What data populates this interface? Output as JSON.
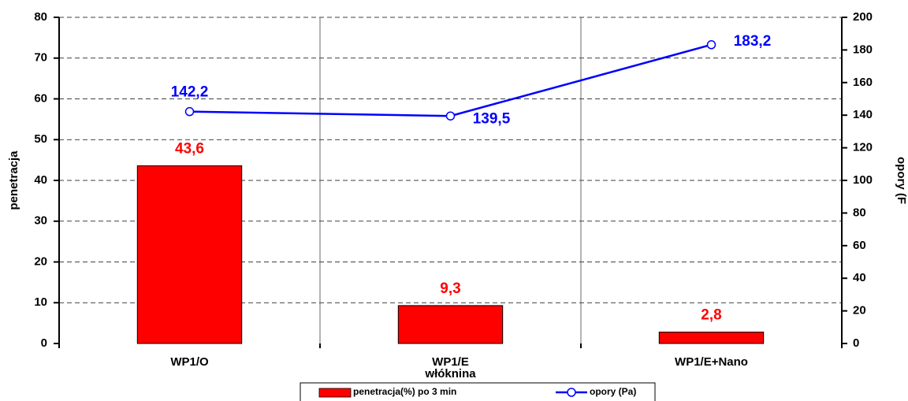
{
  "chart_data": {
    "type": "bar",
    "categories": [
      "WP1/O",
      "WP1/E\nwłóknina",
      "WP1/E+Nano"
    ],
    "series": [
      {
        "name": "penetracja(%) po 3 min",
        "type": "bar",
        "color": "#ff0000",
        "values": [
          43.6,
          9.3,
          2.8
        ],
        "value_labels": [
          "43,6",
          "9,3",
          "2,8"
        ]
      },
      {
        "name": "opory (Pa)",
        "type": "line",
        "axis": "y2",
        "color": "#0000ff",
        "values": [
          142.2,
          139.5,
          183.2
        ],
        "value_labels": [
          "142,2",
          "139,5",
          "183,2"
        ]
      }
    ],
    "ylabel": "penetracja",
    "y2label": "opory (F",
    "ylim": [
      0,
      80
    ],
    "yticks": [
      0,
      10,
      20,
      30,
      40,
      50,
      60,
      70,
      80
    ],
    "y2lim": [
      0,
      200
    ],
    "y2ticks": [
      0,
      20,
      40,
      60,
      80,
      100,
      120,
      140,
      160,
      180,
      200
    ],
    "grid": true,
    "legend": "bottom"
  }
}
